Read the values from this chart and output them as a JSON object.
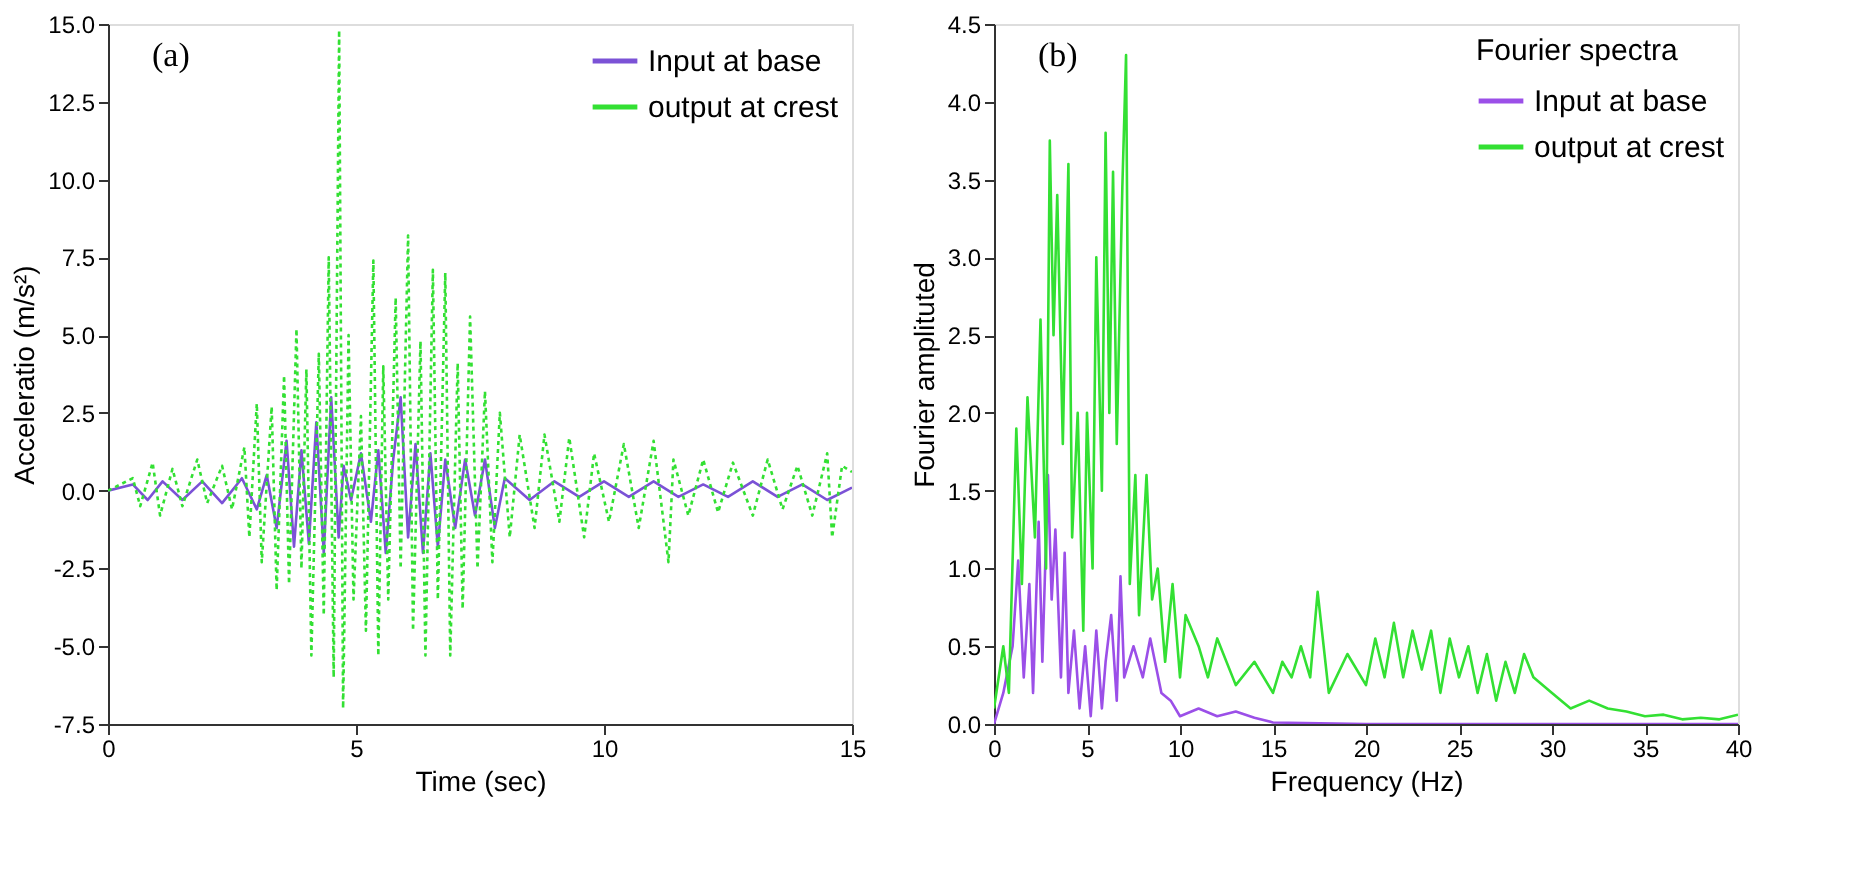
{
  "chart_data": [
    {
      "type": "line",
      "xlabel": "Time (sec)",
      "ylabel": "Acceleratio (m/s²)",
      "annotations": [
        "(a)"
      ],
      "xlim": [
        0,
        15
      ],
      "xticks": [
        0,
        5,
        10,
        15
      ],
      "ylim": [
        -7.5,
        15.0
      ],
      "yticks": [
        {
          "value": -7.5,
          "label": "-7.5"
        },
        {
          "value": -5,
          "label": "-5.0"
        },
        {
          "value": -2.5,
          "label": "-2.5"
        },
        {
          "value": 0,
          "label": "0.0"
        },
        {
          "value": 2.5,
          "label": "2.5"
        },
        {
          "value": 5,
          "label": "5.0"
        },
        {
          "value": 7.5,
          "label": "7.5"
        },
        {
          "value": 10,
          "label": "10.0"
        },
        {
          "value": 12.5,
          "label": "12.5"
        },
        {
          "value": 15,
          "label": "15.0"
        }
      ],
      "grid": false,
      "legend": "top right",
      "series": [
        {
          "name": "Input  at base",
          "color": "#7b52d6",
          "line_style": "solid",
          "x": [
            0,
            0.5,
            0.8,
            1.1,
            1.5,
            1.9,
            2.3,
            2.7,
            3.0,
            3.2,
            3.4,
            3.6,
            3.75,
            3.9,
            4.05,
            4.2,
            4.35,
            4.5,
            4.65,
            4.75,
            4.9,
            5.1,
            5.3,
            5.45,
            5.6,
            5.75,
            5.9,
            6.05,
            6.2,
            6.35,
            6.5,
            6.65,
            6.8,
            7.0,
            7.2,
            7.4,
            7.6,
            7.8,
            8.0,
            8.5,
            9.0,
            9.5,
            10.0,
            10.5,
            11.0,
            11.5,
            12.0,
            12.5,
            13.0,
            13.5,
            14.0,
            14.5,
            15.0
          ],
          "values": [
            0,
            0.2,
            -0.3,
            0.3,
            -0.3,
            0.3,
            -0.4,
            0.4,
            -0.6,
            0.5,
            -1.2,
            1.6,
            -1.8,
            1.3,
            -1.7,
            2.2,
            -2.0,
            3.0,
            -1.5,
            0.8,
            -0.3,
            1.2,
            -1.0,
            1.3,
            -2.0,
            1.0,
            3.0,
            -1.5,
            1.5,
            -2.0,
            1.2,
            -1.8,
            1.0,
            -1.2,
            1.0,
            -0.8,
            1.0,
            -1.2,
            0.4,
            -0.3,
            0.3,
            -0.2,
            0.3,
            -0.2,
            0.3,
            -0.2,
            0.2,
            -0.2,
            0.3,
            -0.2,
            0.2,
            -0.3,
            0.1
          ]
        },
        {
          "name": "output at crest",
          "color": "#33e033",
          "line_style": "dotted",
          "x": [
            0,
            0.5,
            0.65,
            0.9,
            1.05,
            1.3,
            1.5,
            1.8,
            2.0,
            2.3,
            2.5,
            2.75,
            2.85,
            3.0,
            3.1,
            3.3,
            3.4,
            3.55,
            3.65,
            3.8,
            3.9,
            4.0,
            4.1,
            4.25,
            4.35,
            4.45,
            4.55,
            4.66,
            4.74,
            4.85,
            4.95,
            5.1,
            5.2,
            5.35,
            5.45,
            5.55,
            5.65,
            5.8,
            5.9,
            6.05,
            6.15,
            6.3,
            6.4,
            6.55,
            6.65,
            6.8,
            6.9,
            7.05,
            7.15,
            7.3,
            7.45,
            7.6,
            7.75,
            7.9,
            8.1,
            8.3,
            8.6,
            8.8,
            9.1,
            9.3,
            9.6,
            9.8,
            10.1,
            10.4,
            10.7,
            11.0,
            11.3,
            11.4,
            11.7,
            12.0,
            12.3,
            12.6,
            13.0,
            13.3,
            13.6,
            13.9,
            14.2,
            14.5,
            14.6,
            14.8,
            15.0
          ],
          "values": [
            0,
            0.4,
            -0.5,
            0.9,
            -0.8,
            0.7,
            -0.5,
            1.0,
            -0.4,
            0.8,
            -0.6,
            1.4,
            -1.5,
            2.8,
            -2.3,
            2.7,
            -3.2,
            3.7,
            -3.0,
            5.2,
            -2.5,
            3.9,
            -5.3,
            4.4,
            -4.0,
            7.5,
            -6.0,
            14.8,
            -7.0,
            5.0,
            -3.5,
            2.4,
            -4.5,
            7.4,
            -5.3,
            4.0,
            -3.5,
            6.2,
            -2.5,
            8.2,
            -4.5,
            4.8,
            -5.3,
            7.1,
            -3.5,
            7.0,
            -5.3,
            4.1,
            -3.8,
            5.6,
            -2.5,
            3.2,
            -2.3,
            2.5,
            -1.5,
            1.8,
            -1.2,
            1.8,
            -1.0,
            1.7,
            -1.5,
            1.2,
            -1.0,
            1.5,
            -1.2,
            1.6,
            -2.3,
            1.0,
            -0.8,
            1.0,
            -0.7,
            0.9,
            -0.8,
            1.0,
            -0.6,
            0.8,
            -0.8,
            1.2,
            -1.5,
            0.8,
            0.6
          ]
        }
      ]
    },
    {
      "type": "line",
      "xlabel": "Frequency (Hz)",
      "ylabel": "Fourier amplituted",
      "legend_title": "Fourier spectra",
      "annotations": [
        "(b)"
      ],
      "xlim": [
        0,
        40
      ],
      "xticks": [
        0,
        5,
        10,
        15,
        20,
        25,
        30,
        35,
        40
      ],
      "ylim": [
        0,
        4.5
      ],
      "yticks": [
        {
          "value": 0,
          "label": "0.0"
        },
        {
          "value": 0.5,
          "label": "0.5"
        },
        {
          "value": 1,
          "label": "1.0"
        },
        {
          "value": 1.5,
          "label": "1.5"
        },
        {
          "value": 2,
          "label": "2.0"
        },
        {
          "value": 2.5,
          "label": "2.5"
        },
        {
          "value": 3,
          "label": "3.0"
        },
        {
          "value": 3.5,
          "label": "3.5"
        },
        {
          "value": 4,
          "label": "4.0"
        },
        {
          "value": 4.5,
          "label": "4.5"
        }
      ],
      "grid": false,
      "legend": "top right",
      "series": [
        {
          "name": "Input  at base",
          "color": "#9b4fe8",
          "line_style": "solid",
          "x": [
            0,
            0.5,
            1.0,
            1.3,
            1.6,
            1.9,
            2.1,
            2.4,
            2.6,
            2.9,
            3.1,
            3.3,
            3.6,
            3.8,
            4.0,
            4.3,
            4.6,
            4.9,
            5.2,
            5.5,
            5.8,
            6.0,
            6.3,
            6.6,
            6.8,
            7.0,
            7.5,
            8.0,
            8.4,
            9.0,
            9.5,
            10.0,
            11.0,
            12.0,
            13.0,
            14.0,
            15.0,
            20.0,
            40.0
          ],
          "values": [
            0,
            0.2,
            0.5,
            1.05,
            0.3,
            0.9,
            0.2,
            1.3,
            0.4,
            1.6,
            0.8,
            1.25,
            0.3,
            1.1,
            0.2,
            0.6,
            0.1,
            0.5,
            0.05,
            0.6,
            0.1,
            0.4,
            0.7,
            0.15,
            0.95,
            0.3,
            0.5,
            0.3,
            0.55,
            0.2,
            0.15,
            0.05,
            0.1,
            0.05,
            0.08,
            0.04,
            0.01,
            0.0,
            0.0
          ]
        },
        {
          "name": "output at crest",
          "color": "#33e033",
          "line_style": "solid",
          "x": [
            0,
            0.5,
            0.8,
            1.2,
            1.5,
            1.8,
            2.2,
            2.5,
            2.8,
            3.0,
            3.2,
            3.4,
            3.7,
            4.0,
            4.2,
            4.5,
            4.8,
            5.0,
            5.3,
            5.5,
            5.8,
            6.0,
            6.2,
            6.4,
            6.6,
            6.9,
            7.1,
            7.3,
            7.6,
            7.8,
            8.2,
            8.5,
            8.8,
            9.2,
            9.6,
            10.0,
            10.3,
            11.0,
            11.5,
            12.0,
            13.0,
            14.0,
            15.0,
            15.5,
            16.0,
            16.5,
            17.0,
            17.4,
            18.0,
            19.0,
            20.0,
            20.5,
            21.0,
            21.5,
            22.0,
            22.5,
            23.0,
            23.5,
            24.0,
            24.5,
            25.0,
            25.5,
            26.0,
            26.5,
            27.0,
            27.5,
            28.0,
            28.5,
            29.0,
            30.0,
            31.0,
            32.0,
            33.0,
            34.0,
            35.0,
            36.0,
            37.0,
            38.0,
            39.0,
            40.0
          ],
          "values": [
            0.1,
            0.5,
            0.2,
            1.9,
            0.9,
            2.1,
            1.2,
            2.6,
            1.0,
            3.75,
            2.5,
            3.4,
            1.8,
            3.6,
            1.2,
            2.0,
            0.6,
            2.0,
            1.0,
            3.0,
            1.5,
            3.8,
            2.0,
            3.55,
            1.8,
            3.45,
            4.3,
            0.9,
            1.6,
            0.7,
            1.6,
            0.8,
            1.0,
            0.4,
            0.9,
            0.3,
            0.7,
            0.5,
            0.3,
            0.55,
            0.25,
            0.4,
            0.2,
            0.4,
            0.3,
            0.5,
            0.3,
            0.85,
            0.2,
            0.45,
            0.25,
            0.55,
            0.3,
            0.65,
            0.3,
            0.6,
            0.35,
            0.6,
            0.2,
            0.55,
            0.3,
            0.5,
            0.2,
            0.45,
            0.15,
            0.4,
            0.2,
            0.45,
            0.3,
            0.2,
            0.1,
            0.15,
            0.1,
            0.08,
            0.05,
            0.06,
            0.03,
            0.04,
            0.03,
            0.06
          ]
        }
      ]
    }
  ]
}
